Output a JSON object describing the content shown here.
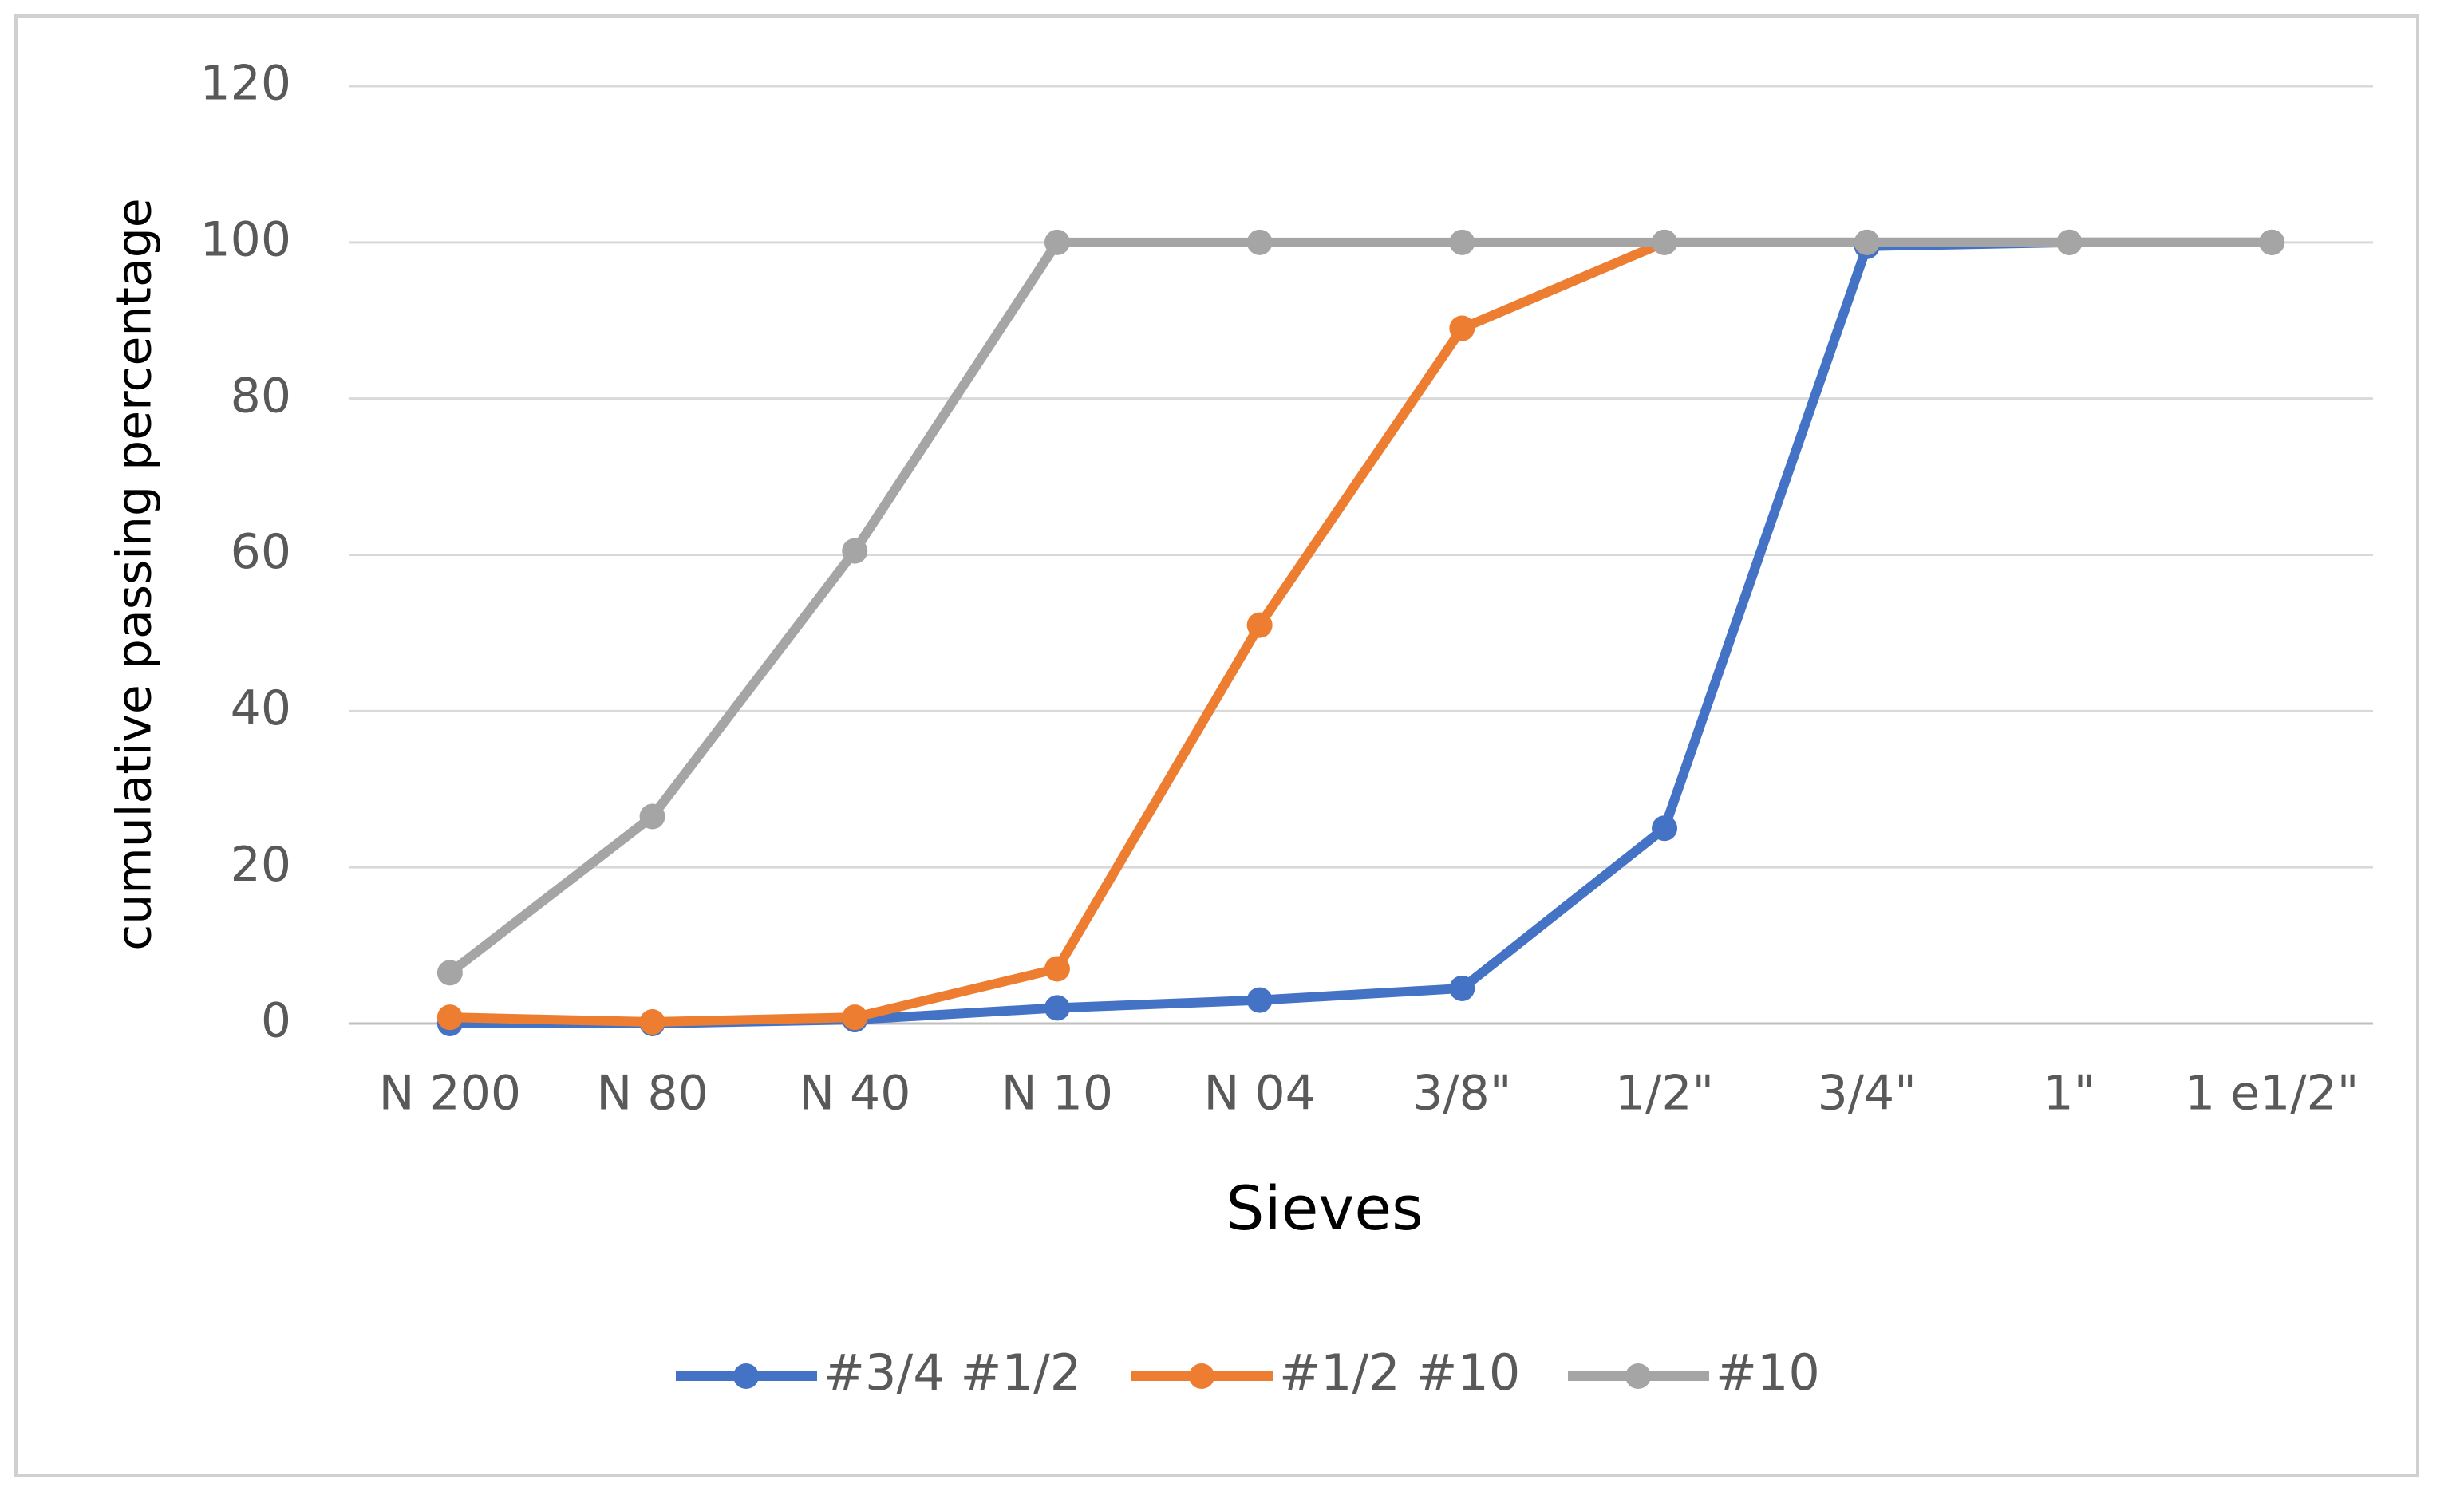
{
  "chart_data": {
    "type": "line",
    "x_label": "Sieves",
    "y_label": "cumulative passing percentage",
    "categories": [
      "N 200",
      "N 80",
      "N 40",
      "N 10",
      "N 04",
      "3/8\"",
      "1/2\"",
      "3/4\"",
      "1\"",
      "1 e1/2\""
    ],
    "series": [
      {
        "name": "#3/4 #1/2",
        "color": "#4472c4",
        "values": [
          0,
          0,
          0.5,
          2,
          3,
          4.5,
          25,
          99.5,
          100,
          100
        ]
      },
      {
        "name": "#1/2 #10",
        "color": "#ed7d31",
        "values": [
          0.8,
          0.2,
          0.8,
          7,
          51,
          89,
          100,
          100,
          100,
          100
        ]
      },
      {
        "name": "#10",
        "color": "#a5a5a5",
        "values": [
          6.5,
          26.5,
          60.5,
          100,
          100,
          100,
          100,
          100,
          100,
          100
        ]
      }
    ],
    "ylim": [
      0,
      120
    ],
    "yticks": [
      0,
      20,
      40,
      60,
      80,
      100,
      120
    ],
    "grid": true,
    "legend": "bottom"
  }
}
